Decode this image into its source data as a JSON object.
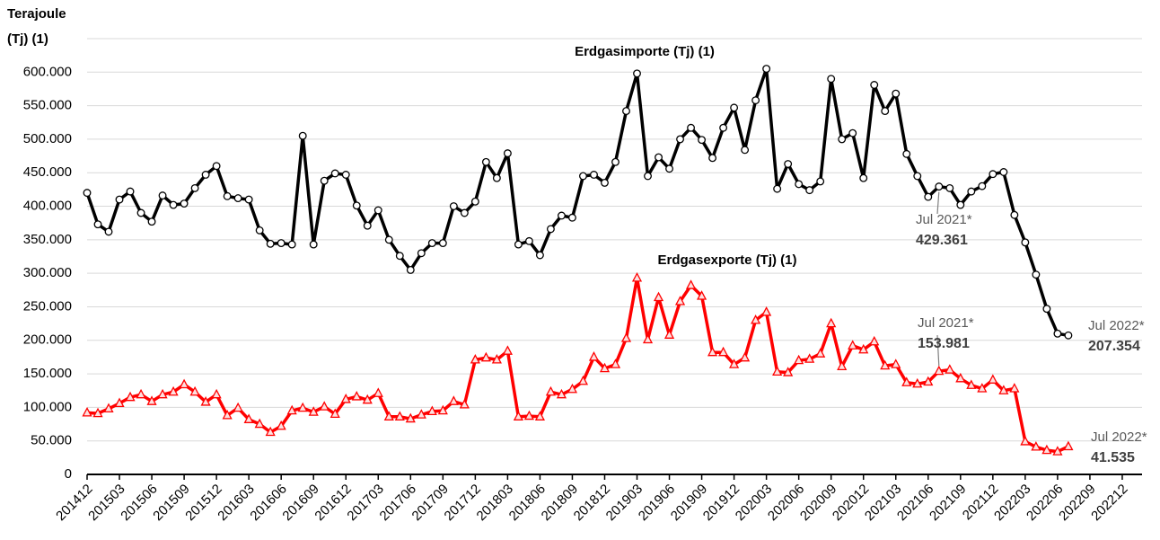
{
  "chart_data": {
    "type": "line",
    "y_axis_label": [
      "Terajoule",
      "(Tj) (1)"
    ],
    "categories": [
      "201412",
      null,
      null,
      "201503",
      null,
      null,
      "201506",
      null,
      null,
      "201509",
      null,
      null,
      "201512",
      null,
      null,
      "201603",
      null,
      null,
      "201606",
      null,
      null,
      "201609",
      null,
      null,
      "201612",
      null,
      null,
      "201703",
      null,
      null,
      "201706",
      null,
      null,
      "201709",
      null,
      null,
      "201712",
      null,
      null,
      "201803",
      null,
      null,
      "201806",
      null,
      null,
      "201809",
      null,
      null,
      "201812",
      null,
      null,
      "201903",
      null,
      null,
      "201906",
      null,
      null,
      "201909",
      null,
      null,
      "201912",
      null,
      null,
      "202003",
      null,
      null,
      "202006",
      null,
      null,
      "202009",
      null,
      null,
      "202012",
      null,
      null,
      "202103",
      null,
      null,
      "202106",
      null,
      null,
      "202109",
      null,
      null,
      "202112",
      null,
      null,
      "202203",
      null,
      null,
      "202206",
      null,
      null,
      "202209",
      null,
      null,
      "202212"
    ],
    "series": [
      {
        "name": "Erdgasimporte (Tj) (1)",
        "color": "#000000",
        "marker": "circle",
        "values": [
          420000,
          373000,
          362000,
          410000,
          422000,
          390000,
          377000,
          416000,
          402000,
          404000,
          427000,
          447000,
          460000,
          415000,
          412000,
          410000,
          364000,
          344000,
          345000,
          343000,
          505000,
          343000,
          438000,
          449000,
          447000,
          401000,
          371000,
          394000,
          350000,
          326000,
          305000,
          330000,
          345000,
          345000,
          400000,
          390000,
          407000,
          466000,
          442000,
          479000,
          343000,
          348000,
          327000,
          366000,
          386000,
          383000,
          445000,
          447000,
          435000,
          466000,
          542000,
          598000,
          445000,
          473000,
          456000,
          500000,
          517000,
          499000,
          472000,
          517000,
          547000,
          484000,
          558000,
          605000,
          426000,
          463000,
          433000,
          424000,
          437000,
          590000,
          500000,
          509000,
          442000,
          581000,
          542000,
          568000,
          478000,
          445000,
          414000,
          429361,
          427000,
          402000,
          422000,
          430000,
          448000,
          451000,
          387000,
          346000,
          298000,
          247000,
          210000,
          207354,
          null,
          null,
          null,
          null,
          null
        ],
        "value_labels": [
          null,
          null,
          null,
          null,
          null,
          null,
          null,
          null,
          null,
          null,
          null,
          null,
          null,
          null,
          null,
          null,
          null,
          null,
          null,
          null,
          null,
          null,
          null,
          null,
          null,
          null,
          null,
          null,
          null,
          null,
          null,
          null,
          null,
          null,
          null,
          null,
          null,
          null,
          null,
          null,
          null,
          null,
          null,
          null,
          null,
          null,
          null,
          null,
          null,
          null,
          null,
          null,
          null,
          null,
          null,
          null,
          null,
          null,
          null,
          null,
          null,
          null,
          null,
          null,
          null,
          null,
          null,
          null,
          null,
          null,
          null,
          null,
          null,
          null,
          null,
          null,
          null,
          null,
          null,
          "429.361",
          null,
          null,
          null,
          null,
          null,
          null,
          null,
          null,
          null,
          null,
          null,
          "207.354",
          null,
          null,
          null,
          null,
          null
        ],
        "notes": [
          null,
          null,
          null,
          null,
          null,
          null,
          null,
          null,
          null,
          null,
          null,
          null,
          null,
          null,
          null,
          null,
          null,
          null,
          null,
          null,
          null,
          null,
          null,
          null,
          null,
          null,
          null,
          null,
          null,
          null,
          null,
          null,
          null,
          null,
          null,
          null,
          null,
          null,
          null,
          null,
          null,
          null,
          null,
          null,
          null,
          null,
          null,
          null,
          null,
          null,
          null,
          null,
          null,
          null,
          null,
          null,
          null,
          null,
          null,
          null,
          null,
          null,
          null,
          null,
          null,
          null,
          null,
          null,
          null,
          null,
          null,
          null,
          null,
          null,
          null,
          null,
          null,
          null,
          null,
          "Jul 2021*",
          null,
          null,
          null,
          null,
          null,
          null,
          null,
          null,
          null,
          null,
          null,
          "Jul 2022*",
          null,
          null,
          null,
          null,
          null
        ]
      },
      {
        "name": "Erdgasexporte (Tj) (1)",
        "color": "#ff0000",
        "marker": "triangle",
        "values": [
          92000,
          91000,
          98000,
          106000,
          115000,
          119000,
          109000,
          119000,
          123000,
          134000,
          123000,
          108000,
          119000,
          88000,
          99000,
          82000,
          75000,
          63000,
          72000,
          95000,
          99000,
          93000,
          101000,
          90000,
          112000,
          116000,
          111000,
          121000,
          86000,
          86000,
          83000,
          89000,
          94000,
          95000,
          109000,
          104000,
          171000,
          174000,
          171000,
          184000,
          86000,
          87000,
          86000,
          123000,
          119000,
          127000,
          139000,
          175000,
          158000,
          164000,
          203000,
          293000,
          201000,
          264000,
          208000,
          258000,
          282000,
          266000,
          182000,
          182000,
          164000,
          174000,
          230000,
          242000,
          153000,
          152000,
          170000,
          172000,
          180000,
          225000,
          161000,
          192000,
          186000,
          198000,
          162000,
          164000,
          137000,
          135000,
          138000,
          153981,
          156000,
          143000,
          133000,
          128000,
          141000,
          125000,
          128000,
          49000,
          41000,
          36000,
          34000,
          41535,
          null,
          null,
          null,
          null,
          null
        ],
        "value_labels": [
          null,
          null,
          null,
          null,
          null,
          null,
          null,
          null,
          null,
          null,
          null,
          null,
          null,
          null,
          null,
          null,
          null,
          null,
          null,
          null,
          null,
          null,
          null,
          null,
          null,
          null,
          null,
          null,
          null,
          null,
          null,
          null,
          null,
          null,
          null,
          null,
          null,
          null,
          null,
          null,
          null,
          null,
          null,
          null,
          null,
          null,
          null,
          null,
          null,
          null,
          null,
          null,
          null,
          null,
          null,
          null,
          null,
          null,
          null,
          null,
          null,
          null,
          null,
          null,
          null,
          null,
          null,
          null,
          null,
          null,
          null,
          null,
          null,
          null,
          null,
          null,
          null,
          null,
          null,
          "153.981",
          null,
          null,
          null,
          null,
          null,
          null,
          null,
          null,
          null,
          null,
          null,
          "41.535",
          null,
          null,
          null,
          null,
          null
        ],
        "notes": [
          null,
          null,
          null,
          null,
          null,
          null,
          null,
          null,
          null,
          null,
          null,
          null,
          null,
          null,
          null,
          null,
          null,
          null,
          null,
          null,
          null,
          null,
          null,
          null,
          null,
          null,
          null,
          null,
          null,
          null,
          null,
          null,
          null,
          null,
          null,
          null,
          null,
          null,
          null,
          null,
          null,
          null,
          null,
          null,
          null,
          null,
          null,
          null,
          null,
          null,
          null,
          null,
          null,
          null,
          null,
          null,
          null,
          null,
          null,
          null,
          null,
          null,
          null,
          null,
          null,
          null,
          null,
          null,
          null,
          null,
          null,
          null,
          null,
          null,
          null,
          null,
          null,
          null,
          null,
          "Jul 2021*",
          null,
          null,
          null,
          null,
          null,
          null,
          null,
          null,
          null,
          null,
          null,
          "Jul 2022*",
          null,
          null,
          null,
          null,
          null
        ]
      }
    ],
    "ylim": [
      0,
      650000
    ],
    "yticks": [
      0,
      {
        "value": 50000,
        "label": "50.000"
      },
      {
        "value": 100000,
        "label": "100.000"
      },
      {
        "value": 150000,
        "label": "150.000"
      },
      {
        "value": 200000,
        "label": "200.000"
      },
      {
        "value": 250000,
        "label": "250.000"
      },
      {
        "value": 300000,
        "label": "300.000"
      },
      {
        "value": 350000,
        "label": "350.000"
      },
      {
        "value": 400000,
        "label": "400.000"
      },
      {
        "value": 450000,
        "label": "450.000"
      },
      {
        "value": 500000,
        "label": "500.000"
      },
      {
        "value": 550000,
        "label": "550.000"
      },
      {
        "value": 600000,
        "label": "600.000"
      },
      {
        "value": 650000,
        "label": ""
      }
    ],
    "grid": true
  }
}
